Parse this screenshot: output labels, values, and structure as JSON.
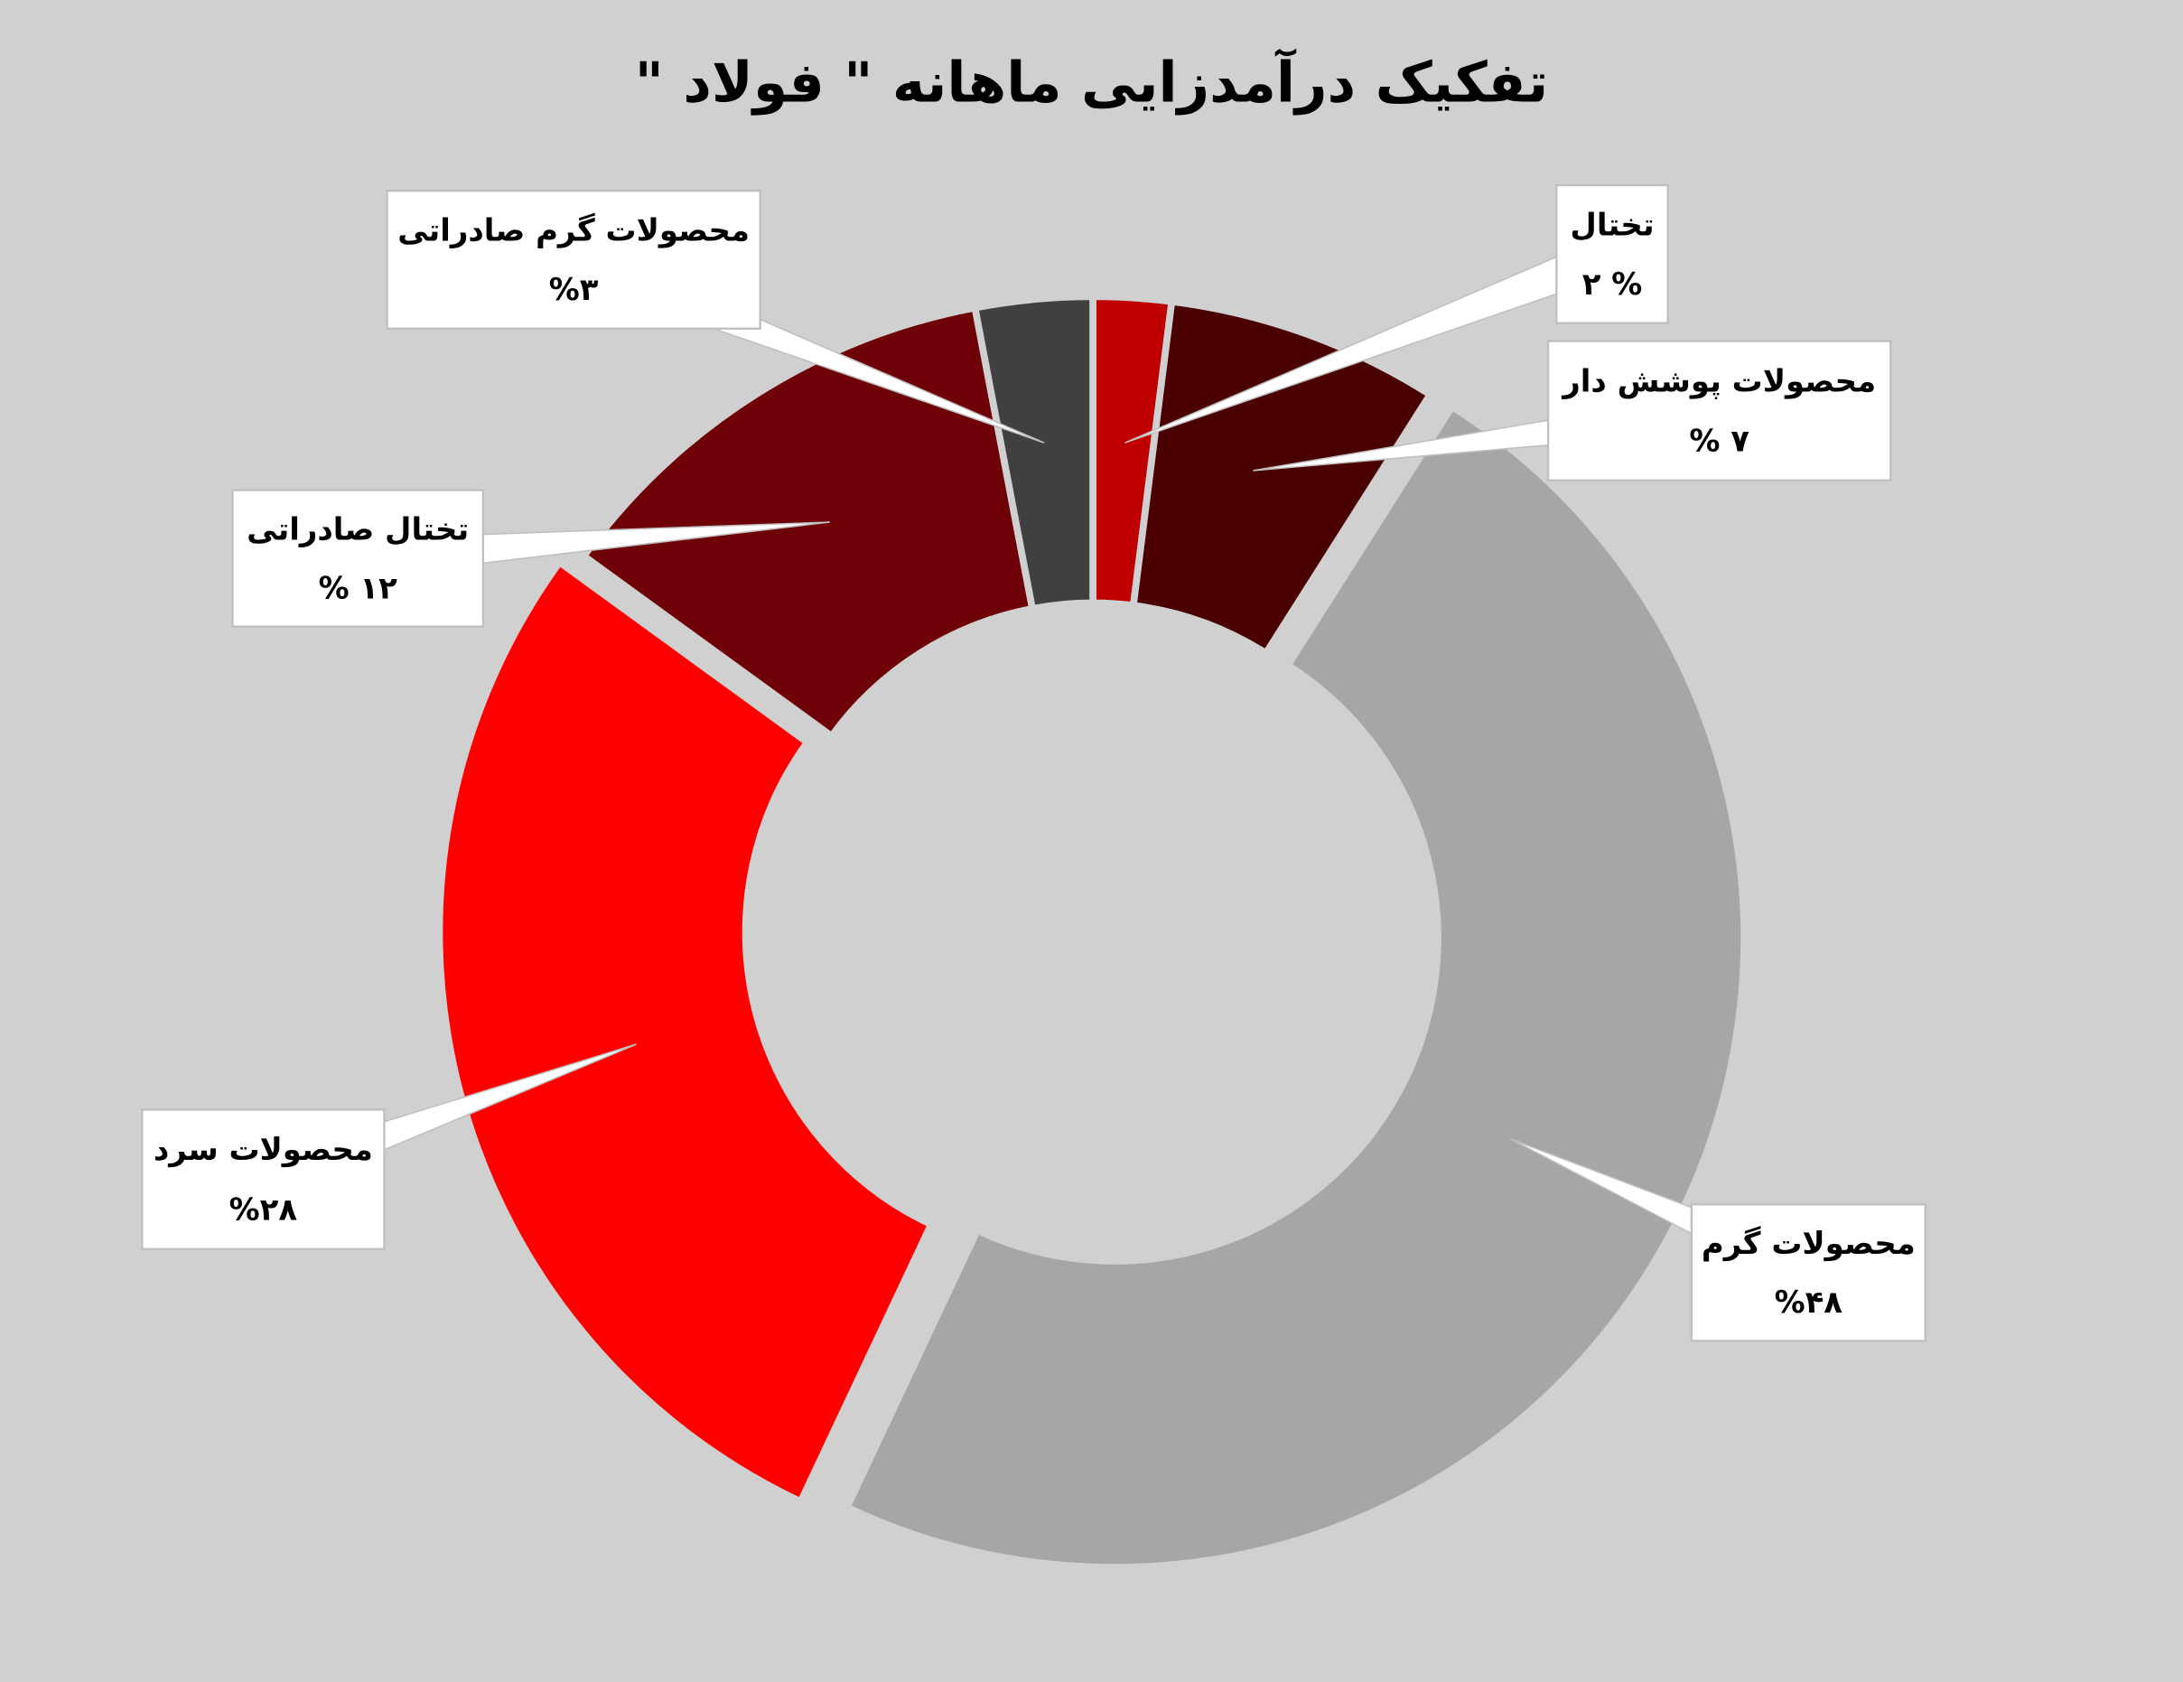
{
  "chart_data": {
    "type": "pie",
    "title": "تفکیک درآمدزایی ماهانه \" فولاد \"",
    "categories": [
      "تختال",
      "محصولات پوشش دار",
      "محصولات گرم",
      "محصولات سرد",
      "تختال صادراتی",
      "محصولات گرم صادراتی"
    ],
    "values": [
      2,
      7,
      48,
      28,
      12,
      3
    ],
    "value_labels": [
      "۲ %",
      "% ۷",
      "%۴۸",
      "%۲۸",
      "% ۱۲",
      "%۳"
    ],
    "colors": [
      "#c00000",
      "#4a0000",
      "#a6a6a6",
      "#ff0000",
      "#6e0008",
      "#404040"
    ]
  }
}
